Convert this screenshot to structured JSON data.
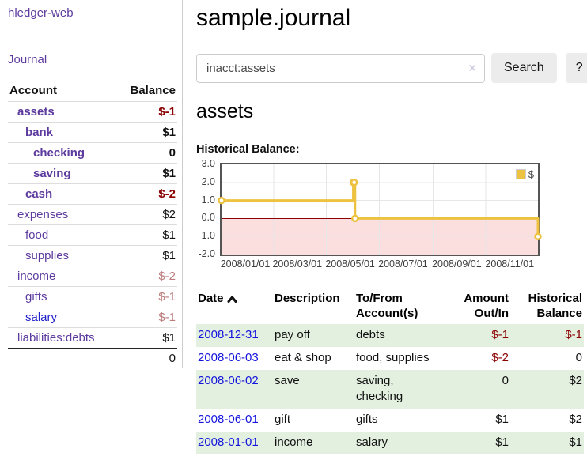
{
  "app": {
    "title": "hledger-web"
  },
  "sidebar": {
    "journal_link": "Journal",
    "accounts": {
      "header_account": "Account",
      "header_balance": "Balance",
      "rows": [
        {
          "name": "assets",
          "balance": "$-1",
          "depth": 1,
          "emph": true
        },
        {
          "name": "bank",
          "balance": "$1",
          "depth": 2,
          "emph": true
        },
        {
          "name": "checking",
          "balance": "0",
          "depth": 3,
          "emph": true
        },
        {
          "name": "saving",
          "balance": "$1",
          "depth": 3,
          "emph": true
        },
        {
          "name": "cash",
          "balance": "$-2",
          "depth": 2,
          "emph": true
        },
        {
          "name": "expenses",
          "balance": "$2",
          "depth": 1,
          "emph": false
        },
        {
          "name": "food",
          "balance": "$1",
          "depth": 2,
          "emph": false
        },
        {
          "name": "supplies",
          "balance": "$1",
          "depth": 2,
          "emph": false
        },
        {
          "name": "income",
          "balance": "$-2",
          "depth": 1,
          "emph": false
        },
        {
          "name": "gifts",
          "balance": "$-1",
          "depth": 2,
          "emph": false
        },
        {
          "name": "salary",
          "balance": "$-1",
          "depth": 2,
          "emph": false,
          "unvisited": true
        },
        {
          "name": "liabilities:debts",
          "balance": "$1",
          "depth": 1,
          "emph": false
        }
      ],
      "total": "0"
    }
  },
  "main": {
    "title": "sample.journal",
    "search": {
      "value": "inacct:assets",
      "clear_label": "✕",
      "button": "Search",
      "help": "?"
    },
    "heading": "assets",
    "chart_label": "Historical Balance:"
  },
  "chart_data": {
    "type": "line",
    "title": "Historical Balance",
    "step": true,
    "series": [
      {
        "name": "$",
        "color": "#edc240",
        "points": [
          {
            "x": "2008-01-01",
            "y": 1
          },
          {
            "x": "2008-06-01",
            "y": 2
          },
          {
            "x": "2008-06-02",
            "y": 2
          },
          {
            "x": "2008-06-03",
            "y": 0
          },
          {
            "x": "2008-12-31",
            "y": -1
          }
        ]
      }
    ],
    "x_range": [
      "2008-01-01",
      "2008-12-31"
    ],
    "x_tick_labels": [
      "2008/01/01",
      "2008/03/01",
      "2008/05/01",
      "2008/07/01",
      "2008/09/01",
      "2008/11/01"
    ],
    "y_ticks": [
      "3.0",
      "2.0",
      "1.0",
      "0.0",
      "-1.0",
      "-2.0"
    ],
    "ylim": [
      -2,
      3
    ],
    "grid": true,
    "gridline_color": "#e6e6e6",
    "zero_line_color": "#8b0000",
    "negative_region_color": "#fbdede",
    "legend": {
      "position": "top-right",
      "label": "$"
    }
  },
  "register": {
    "columns": {
      "date": "Date",
      "description": "Description",
      "tofrom": "To/From Account(s)",
      "amount": "Amount Out/In",
      "balance": "Historical Balance"
    },
    "sort_indicator": "up",
    "rows": [
      {
        "date": "2008-12-31",
        "description": "pay off",
        "tofrom": "debts",
        "amount": "$-1",
        "balance": "$-1"
      },
      {
        "date": "2008-06-03",
        "description": "eat & shop",
        "tofrom": "food, supplies",
        "amount": "$-2",
        "balance": "0"
      },
      {
        "date": "2008-06-02",
        "description": "save",
        "tofrom": "saving, checking",
        "amount": "0",
        "balance": "$2"
      },
      {
        "date": "2008-06-01",
        "description": "gift",
        "tofrom": "gifts",
        "amount": "$1",
        "balance": "$2"
      },
      {
        "date": "2008-01-01",
        "description": "income",
        "tofrom": "salary",
        "amount": "$1",
        "balance": "$1"
      }
    ]
  }
}
